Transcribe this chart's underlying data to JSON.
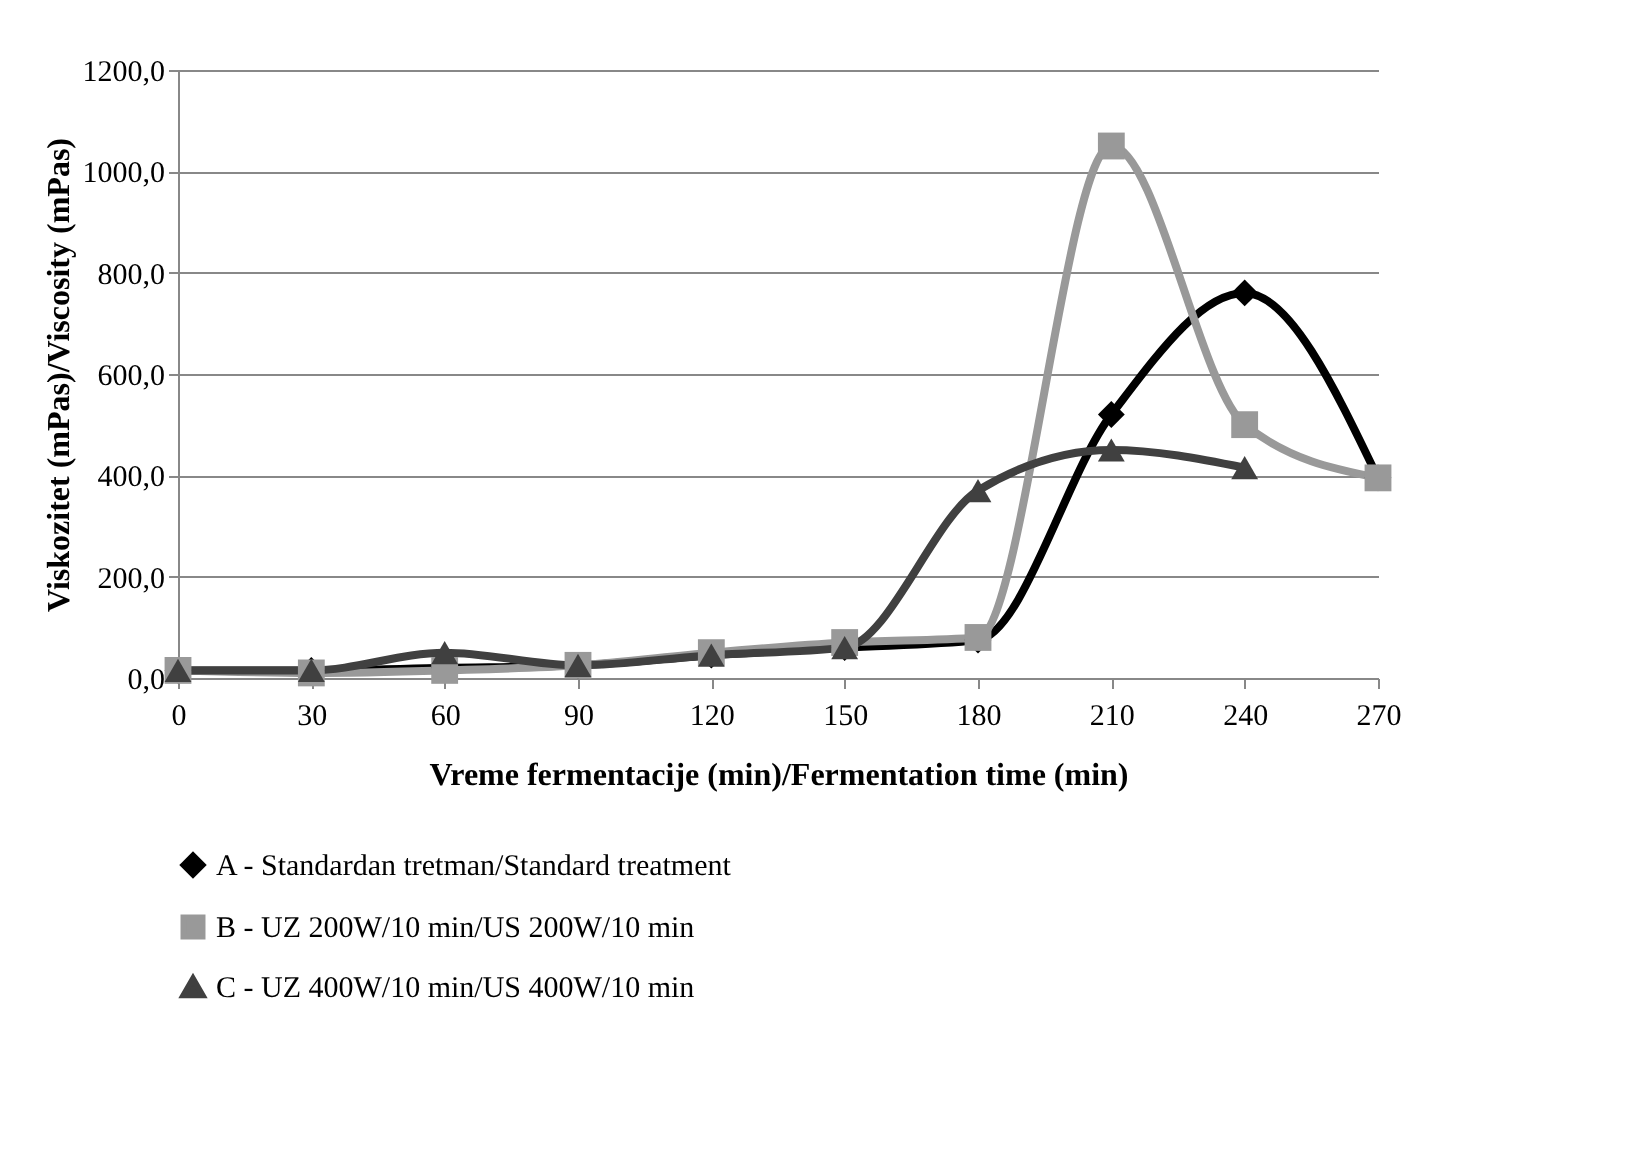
{
  "chart_data": {
    "type": "line",
    "xlabel": "Vreme fermentacije (min)/Fermentation time (min)",
    "ylabel": "Viskozitet (mPas)/Viscosity (mPas)",
    "categories": [
      "0",
      "30",
      "60",
      "90",
      "120",
      "150",
      "180",
      "210",
      "240",
      "270"
    ],
    "series": [
      {
        "name": "A - Standardan tretman/Standard treatment",
        "color": "#000000",
        "marker": "diamond",
        "values": [
          15,
          15,
          20,
          25,
          45,
          60,
          75,
          520,
          760,
          395
        ]
      },
      {
        "name": "B - UZ 200W/10 min/US 200W/10 min",
        "color": "#999999",
        "marker": "square",
        "values": [
          15,
          10,
          15,
          25,
          50,
          70,
          80,
          1050,
          500,
          395
        ]
      },
      {
        "name": "C - UZ 400W/10 min/US 400W/10 min",
        "color": "#404040",
        "marker": "triangle",
        "values": [
          15,
          15,
          50,
          25,
          45,
          60,
          370,
          450,
          415,
          null
        ]
      }
    ],
    "ylim": [
      0,
      1200
    ],
    "yticks": [
      {
        "value": 0,
        "label": "0,0"
      },
      {
        "value": 200,
        "label": "200,0"
      },
      {
        "value": 400,
        "label": "400,0"
      },
      {
        "value": 600,
        "label": "600,0"
      },
      {
        "value": 800,
        "label": "800,0"
      },
      {
        "value": 1000,
        "label": "1000,0"
      },
      {
        "value": 1200,
        "label": "1200,0"
      }
    ],
    "grid": "y",
    "legend": "bottom",
    "line_style": "solid"
  }
}
